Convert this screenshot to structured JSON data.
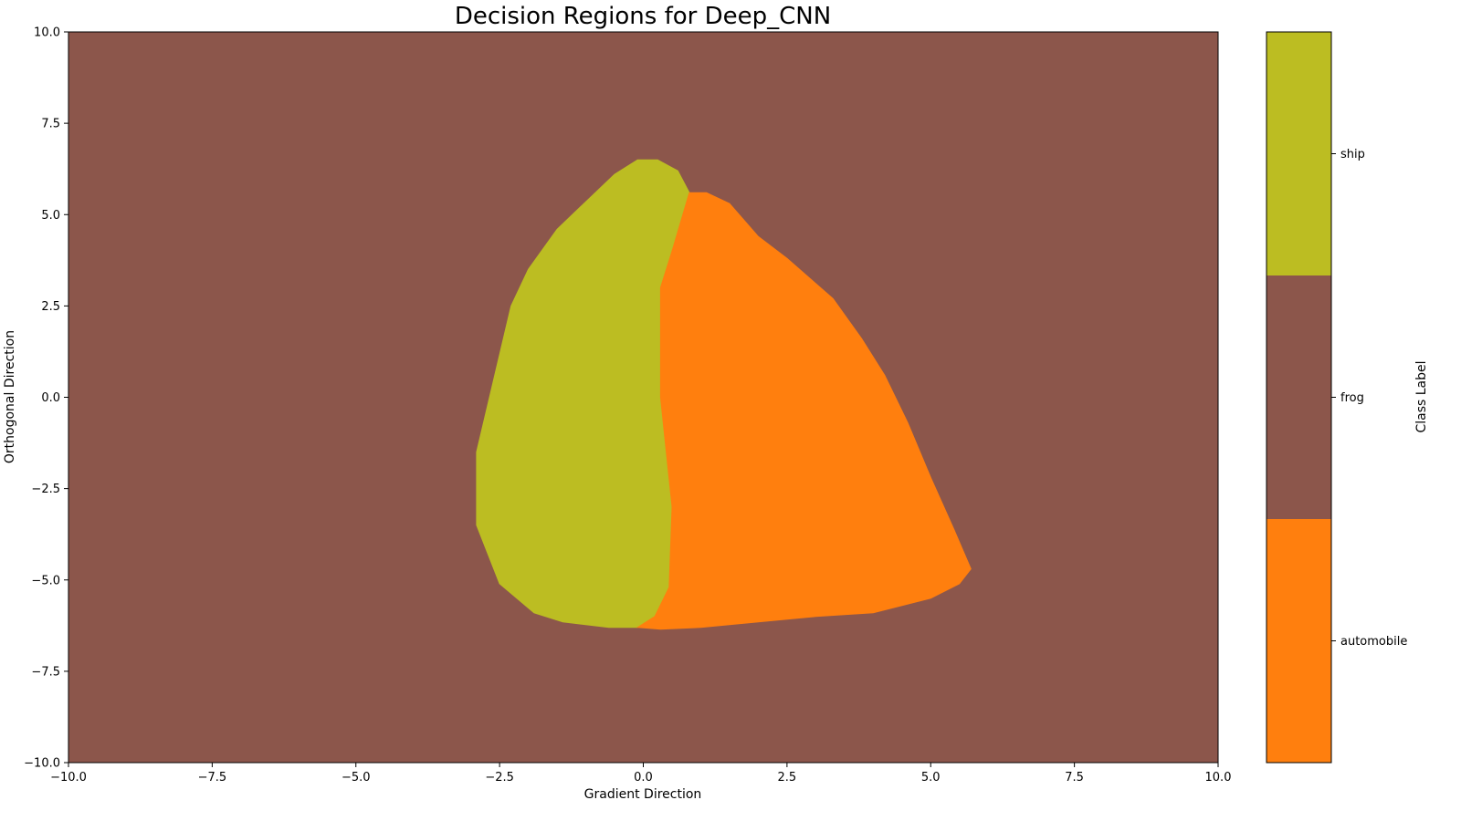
{
  "chart_data": {
    "type": "heatmap",
    "title": "Decision Regions for Deep_CNN",
    "xlabel": "Gradient Direction",
    "ylabel": "Orthogonal Direction",
    "xlim": [
      -10,
      10
    ],
    "ylim": [
      -10,
      10
    ],
    "x_ticks": [
      -10.0,
      -7.5,
      -5.0,
      -2.5,
      0.0,
      2.5,
      5.0,
      7.5,
      10.0
    ],
    "y_ticks": [
      -10.0,
      -7.5,
      -5.0,
      -2.5,
      0.0,
      2.5,
      5.0,
      7.5,
      10.0
    ],
    "x_tick_labels": [
      "−10.0",
      "−7.5",
      "−5.0",
      "−2.5",
      "0.0",
      "2.5",
      "5.0",
      "7.5",
      "10.0"
    ],
    "y_tick_labels": [
      "−10.0",
      "−7.5",
      "−5.0",
      "−2.5",
      "0.0",
      "2.5",
      "5.0",
      "7.5",
      "10.0"
    ],
    "grid": false,
    "background_class": "frog",
    "classes": [
      {
        "label": "automobile",
        "color": "#ff7f0e"
      },
      {
        "label": "frog",
        "color": "#8c564b"
      },
      {
        "label": "ship",
        "color": "#bcbd22"
      }
    ],
    "regions": [
      {
        "class": "ship",
        "boundary": [
          [
            -0.1,
            -6.3
          ],
          [
            -0.6,
            -6.3
          ],
          [
            -1.4,
            -6.15
          ],
          [
            -1.9,
            -5.9
          ],
          [
            -2.5,
            -5.1
          ],
          [
            -2.9,
            -3.5
          ],
          [
            -2.9,
            -1.5
          ],
          [
            -2.6,
            0.5
          ],
          [
            -2.3,
            2.5
          ],
          [
            -2.0,
            3.5
          ],
          [
            -1.5,
            4.6
          ],
          [
            -0.9,
            5.5
          ],
          [
            -0.5,
            6.1
          ],
          [
            -0.1,
            6.5
          ],
          [
            0.25,
            6.5
          ],
          [
            0.6,
            6.2
          ],
          [
            0.8,
            5.6
          ],
          [
            0.5,
            4.0
          ],
          [
            0.3,
            3.0
          ],
          [
            0.3,
            2.0
          ],
          [
            0.3,
            1.0
          ],
          [
            0.3,
            0.0
          ],
          [
            0.4,
            -1.5
          ],
          [
            0.5,
            -3.0
          ],
          [
            0.45,
            -5.2
          ],
          [
            0.2,
            -6.0
          ]
        ]
      },
      {
        "class": "automobile",
        "boundary": [
          [
            -0.1,
            -6.3
          ],
          [
            0.2,
            -6.0
          ],
          [
            0.45,
            -5.2
          ],
          [
            0.5,
            -3.0
          ],
          [
            0.4,
            -1.5
          ],
          [
            0.3,
            0.0
          ],
          [
            0.3,
            1.0
          ],
          [
            0.3,
            2.0
          ],
          [
            0.3,
            3.0
          ],
          [
            0.5,
            4.0
          ],
          [
            0.8,
            5.6
          ],
          [
            1.1,
            5.6
          ],
          [
            1.5,
            5.3
          ],
          [
            2.0,
            4.4
          ],
          [
            2.5,
            3.8
          ],
          [
            3.3,
            2.7
          ],
          [
            3.8,
            1.6
          ],
          [
            4.2,
            0.6
          ],
          [
            4.6,
            -0.7
          ],
          [
            5.0,
            -2.2
          ],
          [
            5.4,
            -3.6
          ],
          [
            5.7,
            -4.7
          ],
          [
            5.5,
            -5.1
          ],
          [
            5.0,
            -5.5
          ],
          [
            4.0,
            -5.9
          ],
          [
            3.0,
            -6.0
          ],
          [
            2.0,
            -6.15
          ],
          [
            1.0,
            -6.3
          ],
          [
            0.3,
            -6.35
          ]
        ]
      }
    ],
    "colorbar": {
      "label": "Class Label",
      "ticks": [
        "automobile",
        "frog",
        "ship"
      ]
    }
  }
}
